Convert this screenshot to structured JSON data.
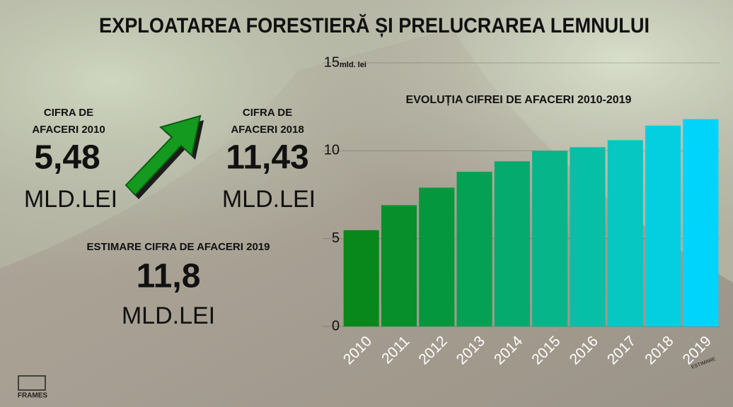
{
  "title": "EXPLOATAREA FORESTIERĂ ȘI PRELUCRAREA LEMNULUI",
  "stats": [
    {
      "label": [
        "CIFRA DE",
        "AFACERI 2010"
      ],
      "value": "5,48",
      "unit": "MLD.LEI"
    },
    {
      "label": [
        "CIFRA DE",
        "AFACERI 2018"
      ],
      "value": "11,43",
      "unit": "MLD.LEI"
    },
    {
      "label": [
        "ESTIMARE CIFRA DE AFACERI 2019"
      ],
      "value": "11,8",
      "unit": "MLD.LEI"
    }
  ],
  "logo": "FRAMES",
  "chart_data": {
    "type": "bar",
    "title": "EVOLUȚIA CIFREI DE AFACERI 2010-2019",
    "y_label": "mld. lei",
    "categories": [
      "2010",
      "2011",
      "2012",
      "2013",
      "2014",
      "2015",
      "2016",
      "2017",
      "2018",
      "2019"
    ],
    "values": [
      5.48,
      6.9,
      7.9,
      8.8,
      9.4,
      10.0,
      10.2,
      10.6,
      11.43,
      11.8
    ],
    "colors": [
      "#08871a",
      "#068f2b",
      "#05973e",
      "#04a054",
      "#05aa6e",
      "#06b58a",
      "#07bfa6",
      "#06c7c2",
      "#03cfe0",
      "#00d4fa"
    ],
    "annotations": [
      {
        "category": "2019",
        "text": "ESTIMARE"
      }
    ],
    "ylim": [
      0,
      15
    ],
    "yticks": [
      0,
      5,
      10,
      15
    ],
    "grid": true
  }
}
